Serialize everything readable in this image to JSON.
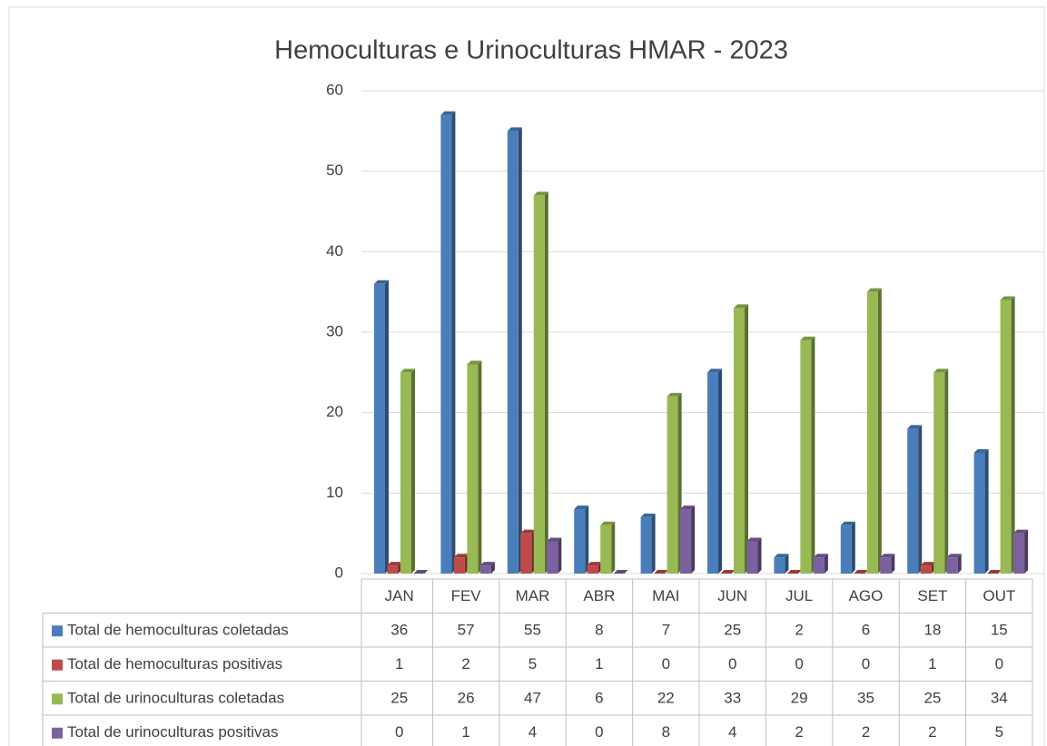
{
  "chart_data": {
    "type": "bar",
    "title": "Hemoculturas e Urinoculturas HMAR - 2023",
    "categories": [
      "JAN",
      "FEV",
      "MAR",
      "ABR",
      "MAI",
      "JUN",
      "JUL",
      "AGO",
      "SET",
      "OUT"
    ],
    "series": [
      {
        "name": "Total de hemoculturas coletadas",
        "color": "#4a7ebb",
        "values": [
          36,
          57,
          55,
          8,
          7,
          25,
          2,
          6,
          18,
          15
        ]
      },
      {
        "name": "Total de hemoculturas positivas",
        "color": "#be4b48",
        "values": [
          1,
          2,
          5,
          1,
          0,
          0,
          0,
          0,
          1,
          0
        ]
      },
      {
        "name": "Total de urinoculturas coletadas",
        "color": "#98b954",
        "values": [
          25,
          26,
          47,
          6,
          22,
          33,
          29,
          35,
          25,
          34
        ]
      },
      {
        "name": "Total de urinoculturas positivas",
        "color": "#7d60a0",
        "values": [
          0,
          1,
          4,
          0,
          8,
          4,
          2,
          2,
          2,
          5
        ]
      }
    ],
    "ylim": [
      0,
      60
    ],
    "yticks": [
      0,
      10,
      20,
      30,
      40,
      50,
      60
    ],
    "grid": true
  }
}
